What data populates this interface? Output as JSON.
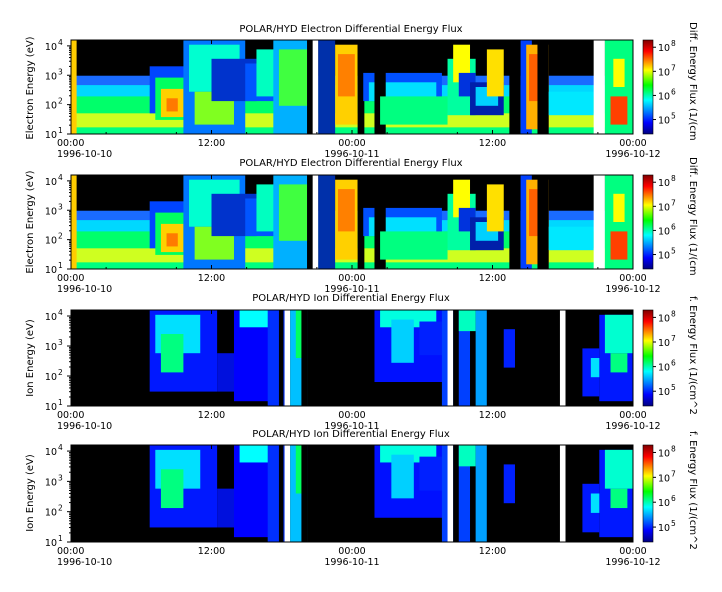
{
  "chart_data": [
    {
      "type": "heatmap",
      "title": "POLAR/HYD  Electron Differential Energy Flux",
      "ylabel": "Electron Energy (eV)",
      "colorbar_label": "Diff. Energy Flux (1/(cm",
      "y_ticks": [
        "10",
        "10",
        "10",
        "10"
      ],
      "y_exponents": [
        "1",
        "2",
        "3",
        "4"
      ],
      "ylim_log10": [
        1,
        4.2
      ],
      "cbar_ticks": [
        "10",
        "10",
        "10",
        "10"
      ],
      "cbar_exponents": [
        "5",
        "6",
        "7",
        "8"
      ],
      "cbar_range_log10": [
        4.4,
        8.3
      ],
      "x_ticks": [
        "00:00",
        "12:00",
        "00:00",
        "12:00",
        "00:00"
      ],
      "x_dates": [
        "1996-10-10",
        "1996-10-11",
        "1996-10-12"
      ],
      "xlim": [
        "1996-10-10 00:00",
        "1996-10-12 00:00"
      ],
      "colormap": [
        "#00007f",
        "#0000ff",
        "#00ffff",
        "#00ff00",
        "#ffff00",
        "#ff0000",
        "#7f0000"
      ]
    },
    {
      "type": "heatmap",
      "title": "POLAR/HYD  Electron Differential Energy Flux",
      "ylabel": "Electron Energy (eV)",
      "colorbar_label": "Diff. Energy Flux (1/(cm",
      "y_ticks": [
        "10",
        "10",
        "10",
        "10"
      ],
      "y_exponents": [
        "1",
        "2",
        "3",
        "4"
      ],
      "ylim_log10": [
        1,
        4.2
      ],
      "cbar_ticks": [
        "10",
        "10",
        "10",
        "10"
      ],
      "cbar_exponents": [
        "5",
        "6",
        "7",
        "8"
      ],
      "cbar_range_log10": [
        4.4,
        8.3
      ],
      "x_ticks": [
        "00:00",
        "12:00",
        "00:00",
        "12:00",
        "00:00"
      ],
      "x_dates": [
        "1996-10-10",
        "1996-10-11",
        "1996-10-12"
      ],
      "xlim": [
        "1996-10-10 00:00",
        "1996-10-12 00:00"
      ],
      "colormap": [
        "#00007f",
        "#0000ff",
        "#00ffff",
        "#00ff00",
        "#ffff00",
        "#ff0000",
        "#7f0000"
      ]
    },
    {
      "type": "heatmap",
      "title": "POLAR/HYD  Ion Differential Energy Flux",
      "ylabel": "Ion Energy (eV)",
      "colorbar_label": "f. Energy Flux (1/(cm^2",
      "y_ticks": [
        "10",
        "10",
        "10",
        "10"
      ],
      "y_exponents": [
        "1",
        "2",
        "3",
        "4"
      ],
      "ylim_log10": [
        1,
        4.2
      ],
      "cbar_ticks": [
        "10",
        "10",
        "10",
        "10"
      ],
      "cbar_exponents": [
        "5",
        "6",
        "7",
        "8"
      ],
      "cbar_range_log10": [
        4.4,
        8.3
      ],
      "x_ticks": [
        "00:00",
        "12:00",
        "00:00",
        "12:00",
        "00:00"
      ],
      "x_dates": [
        "1996-10-10",
        "1996-10-11",
        "1996-10-12"
      ],
      "xlim": [
        "1996-10-10 00:00",
        "1996-10-12 00:00"
      ],
      "colormap": [
        "#00007f",
        "#0000ff",
        "#00ffff",
        "#00ff00",
        "#ffff00",
        "#ff0000",
        "#7f0000"
      ]
    },
    {
      "type": "heatmap",
      "title": "POLAR/HYD  Ion Differential Energy Flux",
      "ylabel": "Ion Energy (eV)",
      "colorbar_label": "f. Energy Flux (1/(cm^2",
      "y_ticks": [
        "10",
        "10",
        "10",
        "10"
      ],
      "y_exponents": [
        "1",
        "2",
        "3",
        "4"
      ],
      "ylim_log10": [
        1,
        4.2
      ],
      "cbar_ticks": [
        "10",
        "10",
        "10",
        "10"
      ],
      "cbar_exponents": [
        "5",
        "6",
        "7",
        "8"
      ],
      "cbar_range_log10": [
        4.4,
        8.3
      ],
      "x_ticks": [
        "00:00",
        "12:00",
        "00:00",
        "12:00",
        "00:00"
      ],
      "x_dates": [
        "1996-10-10",
        "1996-10-11",
        "1996-10-12"
      ],
      "xlim": [
        "1996-10-10 00:00",
        "1996-10-12 00:00"
      ],
      "colormap": [
        "#00007f",
        "#0000ff",
        "#00ffff",
        "#00ff00",
        "#ffff00",
        "#ff0000",
        "#7f0000"
      ]
    }
  ]
}
